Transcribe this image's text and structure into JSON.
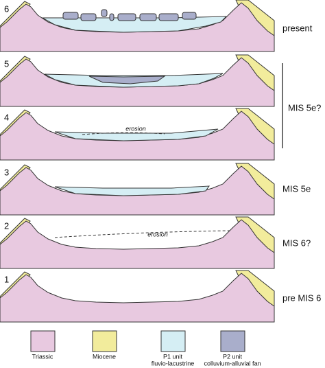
{
  "stages": [
    "6",
    "5",
    "4",
    "3",
    "2",
    "1"
  ],
  "periods": [
    "present",
    "MIS 5e?",
    "MIS 5e",
    "MIS 6?",
    "pre MIS 6"
  ],
  "annotations": [
    "erosion",
    "erosion"
  ],
  "legend": [
    {
      "label": "Triassic"
    },
    {
      "label": "Miocene"
    },
    {
      "label": "P1 unit",
      "sublabel": "fluvio-lacustrine"
    },
    {
      "label": "P2 unit",
      "sublabel": "colluvium-alluvial fan"
    }
  ]
}
